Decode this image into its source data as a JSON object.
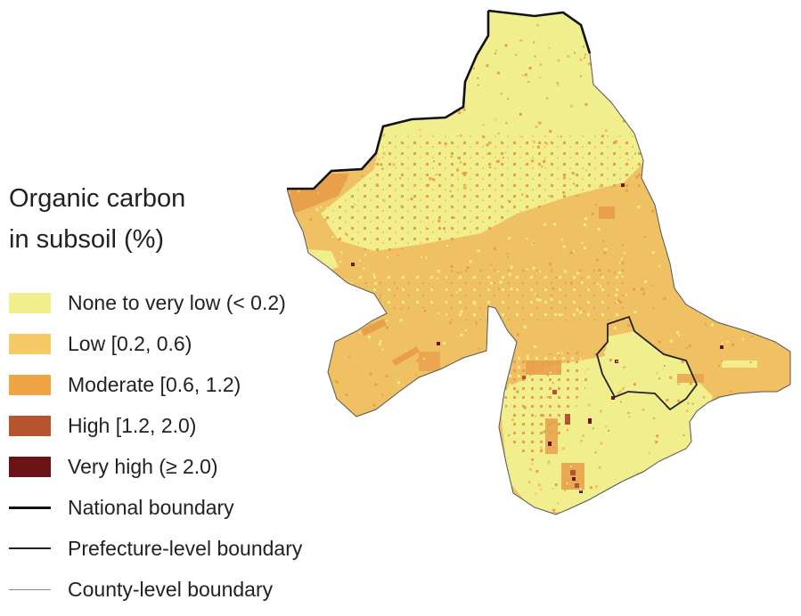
{
  "legend": {
    "title_line1": "Organic carbon",
    "title_line2": "in subsoil (%)",
    "classes": [
      {
        "label": "None to very low (< 0.2)",
        "color": "#f1ee8e"
      },
      {
        "label": "Low [0.2, 0.6)",
        "color": "#f4cb66"
      },
      {
        "label": "Moderate [0.6, 1.2)",
        "color": "#f0a544"
      },
      {
        "label": "High [1.2, 2.0)",
        "color": "#b5542e"
      },
      {
        "label": "Very high (≥ 2.0)",
        "color": "#6a1418"
      }
    ],
    "boundaries": [
      {
        "label": "National boundary",
        "color": "#111111"
      },
      {
        "label": "Prefecture-level boundary",
        "color": "#222222"
      },
      {
        "label": "County-level boundary",
        "color": "#888888"
      }
    ]
  },
  "colors": {
    "none_to_very_low": "#f1ee8e",
    "low": "#efc163",
    "moderate": "#e8a04a",
    "high": "#b5542e",
    "very_high": "#6a1418"
  }
}
